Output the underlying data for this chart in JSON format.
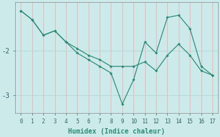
{
  "line1_x": [
    0,
    1,
    2,
    3,
    4,
    5,
    6,
    7,
    8,
    9,
    10,
    11,
    12,
    13,
    14,
    15,
    16,
    17
  ],
  "line1_y": [
    -1.1,
    -1.3,
    -1.65,
    -1.55,
    -1.8,
    -2.05,
    -2.2,
    -2.35,
    -2.5,
    -3.2,
    -2.65,
    -1.8,
    -2.05,
    -1.25,
    -1.2,
    -1.5,
    -2.35,
    -2.55
  ],
  "line2_x": [
    0,
    1,
    2,
    3,
    4,
    5,
    6,
    7,
    8,
    9,
    10,
    11,
    12,
    13,
    14,
    15,
    16,
    17
  ],
  "line2_y": [
    -1.1,
    -1.3,
    -1.65,
    -1.55,
    -1.8,
    -1.95,
    -2.1,
    -2.2,
    -2.35,
    -2.35,
    -2.35,
    -2.25,
    -2.45,
    -2.1,
    -1.85,
    -2.1,
    -2.45,
    -2.55
  ],
  "line_color": "#2e8b78",
  "bg_color": "#cceaea",
  "grid_color_v": "#e8b8b8",
  "grid_color_h": "#b8d8d8",
  "xlabel": "Humidex (Indice chaleur)",
  "xlim": [
    -0.5,
    17.5
  ],
  "ylim": [
    -3.4,
    -0.9
  ],
  "yticks": [
    -3.0,
    -2.0
  ],
  "ytick_labels": [
    "-3",
    "-2"
  ],
  "xticks": [
    0,
    1,
    2,
    3,
    4,
    5,
    6,
    7,
    8,
    9,
    10,
    11,
    12,
    13,
    14,
    15,
    16,
    17
  ]
}
